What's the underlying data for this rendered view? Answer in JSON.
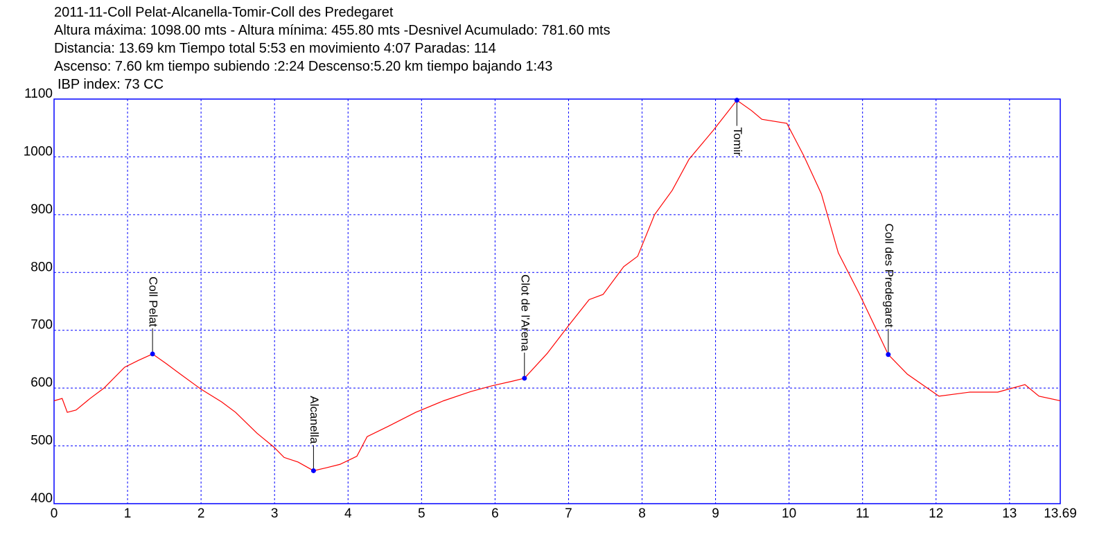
{
  "chart_data": {
    "type": "line",
    "title": "2011-11-Coll Pelat-Alcanella-Tomir-Coll des Predegaret",
    "subtitle": [
      "Altura máxima: 1098.00 mts - Altura mínima: 455.80 mts -Desnivel Acumulado: 781.60 mts",
      "Distancia: 13.69 km  Tiempo total 5:53  en movimiento 4:07 Paradas: 114",
      "Ascenso: 7.60 km  tiempo subiendo :2:24  Descenso:5.20 km tiempo bajando 1:43",
      "IBP index: 73 CC"
    ],
    "x": [
      0,
      0.11,
      0.18,
      0.3,
      0.49,
      0.68,
      0.96,
      1.15,
      1.34,
      1.53,
      1.72,
      2.0,
      2.28,
      2.47,
      2.76,
      2.99,
      3.13,
      3.32,
      3.53,
      3.7,
      3.89,
      4.12,
      4.26,
      4.55,
      4.92,
      5.3,
      5.67,
      5.96,
      6.24,
      6.4,
      6.71,
      7.0,
      7.28,
      7.47,
      7.75,
      7.94,
      8.17,
      8.41,
      8.64,
      8.97,
      9.29,
      9.49,
      9.63,
      9.97,
      10.2,
      10.44,
      10.67,
      10.96,
      11.35,
      11.61,
      12.04,
      12.46,
      12.84,
      13.21,
      13.4,
      13.69
    ],
    "series": [
      {
        "color": "#ff0000",
        "values": [
          578,
          582,
          558,
          562,
          582,
          600,
          636,
          648,
          659,
          642,
          624,
          598,
          576,
          558,
          522,
          498,
          480,
          472,
          457,
          462,
          468,
          482,
          516,
          534,
          558,
          578,
          594,
          604,
          612,
          617,
          660,
          708,
          753,
          762,
          810,
          828,
          900,
          942,
          996,
          1046,
          1098,
          1080,
          1065,
          1058,
          1002,
          936,
          834,
          762,
          658,
          624,
          586,
          593,
          593,
          606,
          586,
          578
        ]
      }
    ],
    "annotations": [
      {
        "label": "Coll Pelat",
        "x": 1.34,
        "y": 659
      },
      {
        "label": "Alcanella",
        "x": 3.53,
        "y": 457
      },
      {
        "label": "Clot de l'Arena",
        "x": 6.4,
        "y": 617
      },
      {
        "label": "Tomir",
        "x": 9.29,
        "y": 1098
      },
      {
        "label": "Coll des Predegaret",
        "x": 11.35,
        "y": 658
      }
    ],
    "marker_color": "#0000ff",
    "xlim": [
      0,
      13.69
    ],
    "xticks": [
      0,
      1,
      2,
      3,
      4,
      5,
      6,
      7,
      8,
      9,
      10,
      11,
      12,
      13,
      13.69
    ],
    "ylim": [
      400,
      1100
    ],
    "yticks": [
      400,
      500,
      600,
      700,
      800,
      900,
      1000,
      1100
    ],
    "grid": true
  }
}
